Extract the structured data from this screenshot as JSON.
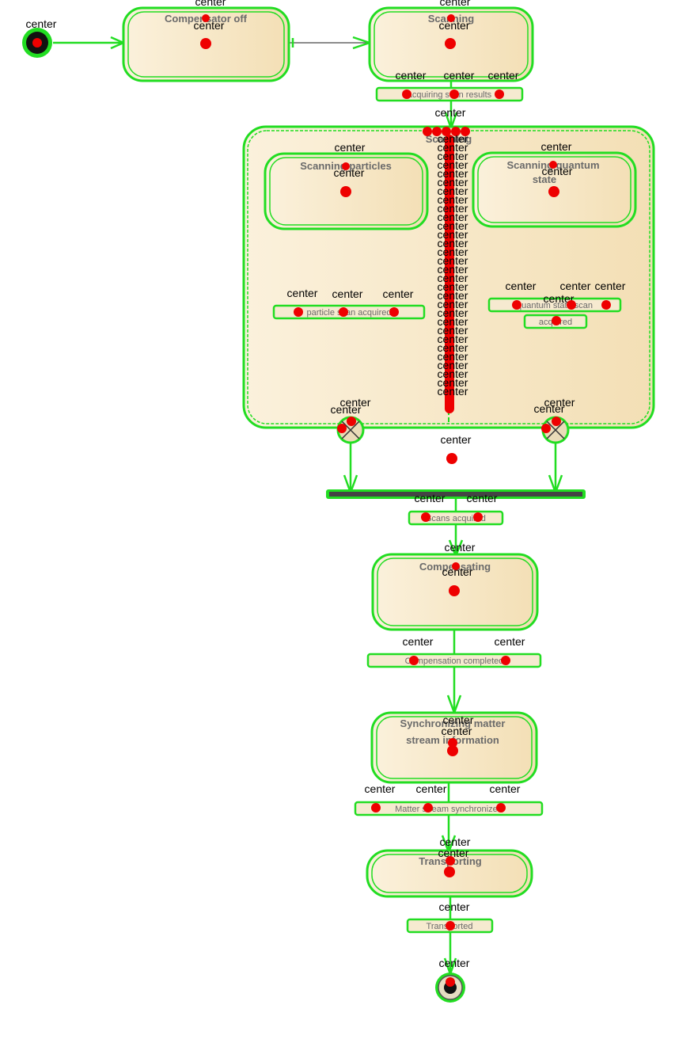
{
  "annotation_word": "center",
  "states": {
    "compensator_off": "Compensator off",
    "scanning": "Scanning",
    "scanning_particles": "Scanning particles",
    "scanning_quantum_l1": "Scanning quantum",
    "scanning_quantum_l2": "state",
    "compensating": "Compensating",
    "synch_l1": "Synchronizing matter",
    "synch_l2": "stream information",
    "transporting": "Transporting"
  },
  "transitions": {
    "acquiring": "acquiring scan results",
    "particle_scan": "particle scan acquired",
    "quantum_l1": "quantum state scan",
    "quantum_l2": "acquired",
    "scans": "Scans acquired",
    "compensation": "Compensation completed",
    "matter_stream": "Matter stream synchronized",
    "transported": "Transported"
  },
  "colors": {
    "highlight": "#22dd22",
    "marker": "#ee0000",
    "state_fill_light": "#fbf1dc",
    "state_fill_dark": "#f3dfb5"
  }
}
